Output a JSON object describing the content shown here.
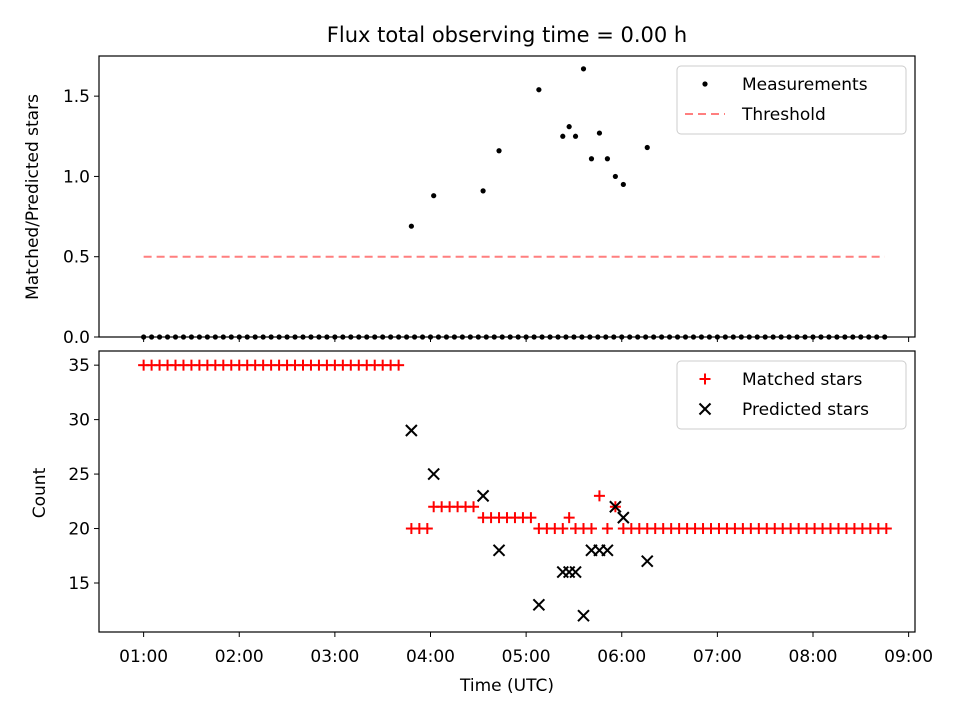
{
  "title": "Flux total observing time = 0.00 h",
  "chart_data": [
    {
      "type": "scatter",
      "panel": "top",
      "title": "Flux total observing time = 0.00 h",
      "xlabel": "",
      "ylabel": "Matched/Predicted stars",
      "xlim": [
        "00:32",
        "09:04"
      ],
      "ylim": [
        0,
        1.75
      ],
      "yticks": [
        0.0,
        0.5,
        1.0,
        1.5
      ],
      "ytick_labels": [
        "0.0",
        "0.5",
        "1.0",
        "1.5"
      ],
      "legend_position": "top-right",
      "series": [
        {
          "name": "Measurements",
          "marker": "dot",
          "color": "#000000",
          "x": [
            "01:00",
            "01:05",
            "01:10",
            "01:15",
            "01:20",
            "01:25",
            "01:30",
            "01:35",
            "01:40",
            "01:45",
            "01:50",
            "01:55",
            "02:00",
            "02:05",
            "02:10",
            "02:15",
            "02:20",
            "02:25",
            "02:30",
            "02:35",
            "02:40",
            "02:45",
            "02:50",
            "02:55",
            "03:00",
            "03:05",
            "03:10",
            "03:15",
            "03:20",
            "03:25",
            "03:30",
            "03:35",
            "03:40",
            "03:45",
            "03:50",
            "03:55",
            "04:00",
            "04:05",
            "04:10",
            "04:15",
            "04:20",
            "04:25",
            "04:30",
            "04:35",
            "04:40",
            "04:45",
            "04:50",
            "04:55",
            "05:00",
            "05:05",
            "05:10",
            "05:15",
            "05:20",
            "05:25",
            "05:30",
            "05:35",
            "05:40",
            "05:45",
            "05:50",
            "05:55",
            "06:00",
            "06:05",
            "06:10",
            "06:15",
            "06:20",
            "06:25",
            "06:30",
            "06:35",
            "06:40",
            "06:45",
            "06:50",
            "06:55",
            "07:00",
            "07:05",
            "07:10",
            "07:15",
            "07:20",
            "07:25",
            "07:30",
            "07:35",
            "07:40",
            "07:45",
            "07:50",
            "07:55",
            "08:00",
            "08:05",
            "08:10",
            "08:15",
            "08:20",
            "08:25",
            "08:30",
            "08:35",
            "08:40",
            "08:45"
          ],
          "y": [
            0,
            0,
            0,
            0,
            0,
            0,
            0,
            0,
            0,
            0,
            0,
            0,
            0,
            0,
            0,
            0,
            0,
            0,
            0,
            0,
            0,
            0,
            0,
            0,
            0,
            0,
            0,
            0,
            0,
            0,
            0,
            0,
            0,
            0,
            0,
            0,
            0,
            0,
            0,
            0,
            0,
            0,
            0,
            0,
            0,
            0,
            0,
            0,
            0,
            0,
            0,
            0,
            0,
            0,
            0,
            0,
            0,
            0,
            0,
            0,
            0,
            0,
            0,
            0,
            0,
            0,
            0,
            0,
            0,
            0,
            0,
            0,
            0,
            0,
            0,
            0,
            0,
            0,
            0,
            0,
            0,
            0,
            0,
            0,
            0,
            0,
            0,
            0,
            0,
            0,
            0,
            0,
            0,
            0
          ],
          "x_extra": [
            "03:48",
            "04:02",
            "04:33",
            "04:43",
            "05:08",
            "05:23",
            "05:27",
            "05:31",
            "05:36",
            "05:41",
            "05:46",
            "05:51",
            "05:56",
            "06:01",
            "06:16"
          ],
          "y_extra": [
            0.69,
            0.88,
            0.91,
            1.16,
            1.54,
            1.25,
            1.31,
            1.25,
            1.67,
            1.11,
            1.27,
            1.11,
            1.0,
            0.95,
            1.18
          ]
        },
        {
          "name": "Threshold",
          "marker": "dashed-line",
          "color": "#ff7f7f",
          "x": [
            "01:00",
            "08:45"
          ],
          "y": [
            0.5,
            0.5
          ]
        }
      ]
    },
    {
      "type": "scatter",
      "panel": "bottom",
      "title": "",
      "xlabel": "Time (UTC)",
      "ylabel": "Count",
      "xlim": [
        "00:32",
        "09:04"
      ],
      "ylim": [
        10.5,
        36.3
      ],
      "yticks": [
        15,
        20,
        25,
        30,
        35
      ],
      "ytick_labels": [
        "15",
        "20",
        "25",
        "30",
        "35"
      ],
      "xticks": [
        "01:00",
        "02:00",
        "03:00",
        "04:00",
        "05:00",
        "06:00",
        "07:00",
        "08:00",
        "09:00"
      ],
      "legend_position": "top-right",
      "series": [
        {
          "name": "Matched stars",
          "marker": "plus",
          "color": "#ff0000",
          "x": [
            "01:00",
            "01:05",
            "01:10",
            "01:15",
            "01:20",
            "01:25",
            "01:30",
            "01:35",
            "01:40",
            "01:45",
            "01:50",
            "01:55",
            "02:00",
            "02:05",
            "02:10",
            "02:15",
            "02:20",
            "02:25",
            "02:30",
            "02:35",
            "02:40",
            "02:45",
            "02:50",
            "02:55",
            "03:00",
            "03:05",
            "03:10",
            "03:15",
            "03:20",
            "03:25",
            "03:30",
            "03:35",
            "03:40",
            "03:48",
            "03:53",
            "03:58",
            "04:02",
            "04:07",
            "04:12",
            "04:17",
            "04:22",
            "04:27",
            "04:33",
            "04:38",
            "04:43",
            "04:48",
            "04:53",
            "04:58",
            "05:03",
            "05:08",
            "05:13",
            "05:18",
            "05:23",
            "05:27",
            "05:31",
            "05:36",
            "05:41",
            "05:46",
            "05:51",
            "05:56",
            "06:01",
            "06:06",
            "06:11",
            "06:16",
            "06:21",
            "06:26",
            "06:31",
            "06:36",
            "06:41",
            "06:46",
            "06:51",
            "06:56",
            "07:01",
            "07:06",
            "07:11",
            "07:16",
            "07:21",
            "07:26",
            "07:31",
            "07:36",
            "07:41",
            "07:46",
            "07:51",
            "07:56",
            "08:01",
            "08:06",
            "08:11",
            "08:16",
            "08:21",
            "08:26",
            "08:31",
            "08:36",
            "08:41",
            "08:46"
          ],
          "y": [
            35,
            35,
            35,
            35,
            35,
            35,
            35,
            35,
            35,
            35,
            35,
            35,
            35,
            35,
            35,
            35,
            35,
            35,
            35,
            35,
            35,
            35,
            35,
            35,
            35,
            35,
            35,
            35,
            35,
            35,
            35,
            35,
            35,
            20,
            20,
            20,
            22,
            22,
            22,
            22,
            22,
            22,
            21,
            21,
            21,
            21,
            21,
            21,
            21,
            20,
            20,
            20,
            20,
            21,
            20,
            20,
            20,
            23,
            20,
            22,
            20,
            20,
            20,
            20,
            20,
            20,
            20,
            20,
            20,
            20,
            20,
            20,
            20,
            20,
            20,
            20,
            20,
            20,
            20,
            20,
            20,
            20,
            20,
            20,
            20,
            20,
            20,
            20,
            20,
            20,
            20,
            20,
            20,
            20
          ]
        },
        {
          "name": "Predicted stars",
          "marker": "x",
          "color": "#000000",
          "x": [
            "03:48",
            "04:02",
            "04:33",
            "04:43",
            "05:08",
            "05:23",
            "05:27",
            "05:31",
            "05:36",
            "05:41",
            "05:46",
            "05:51",
            "05:56",
            "06:01",
            "06:16"
          ],
          "y": [
            29,
            25,
            23,
            18,
            13,
            16,
            16,
            16,
            12,
            18,
            18,
            18,
            22,
            21,
            17
          ]
        }
      ]
    }
  ]
}
